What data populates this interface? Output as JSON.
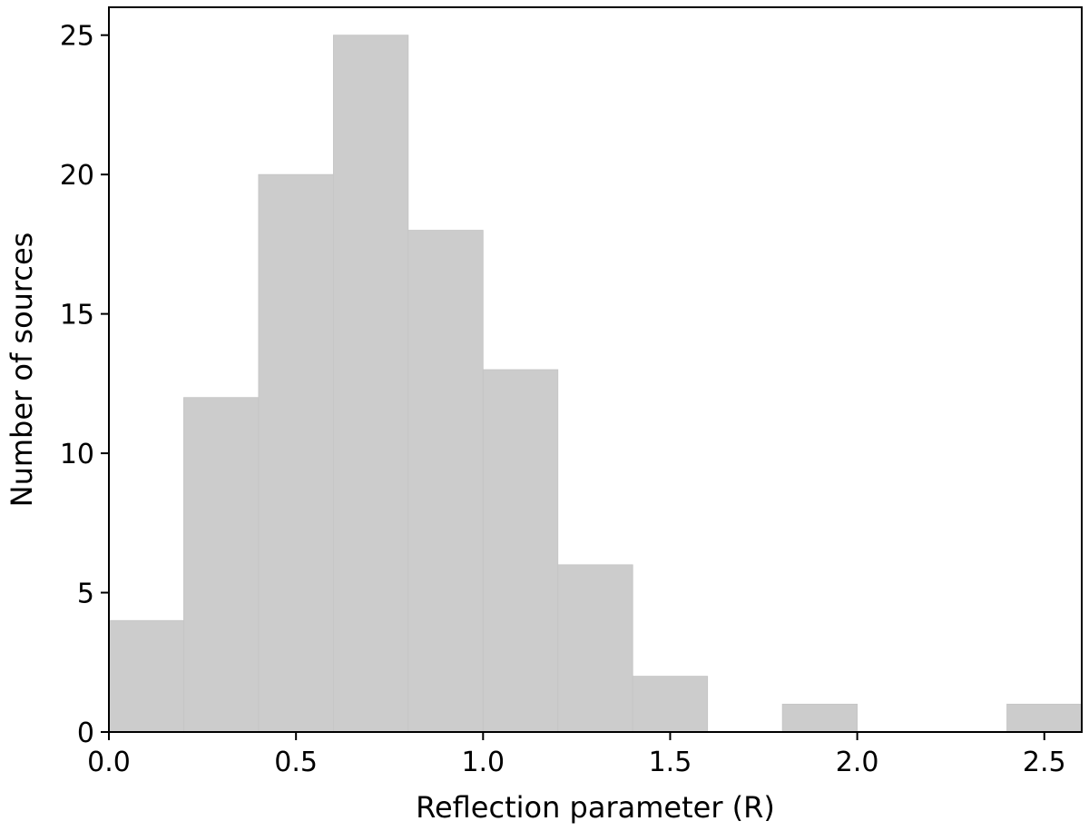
{
  "chart_data": {
    "type": "bar",
    "subtype": "histogram",
    "title": "",
    "xlabel": "Reflection parameter (R)",
    "ylabel": "Number of sources",
    "bin_edges": [
      0.0,
      0.2,
      0.4,
      0.6,
      0.8,
      1.0,
      1.2,
      1.4,
      1.6,
      1.8,
      2.0,
      2.2,
      2.4,
      2.6
    ],
    "values": [
      4,
      12,
      20,
      25,
      18,
      13,
      6,
      2,
      0,
      1,
      0,
      0,
      1
    ],
    "xlim": [
      0.0,
      2.6
    ],
    "ylim": [
      0,
      26
    ],
    "xticks": [
      0.0,
      0.5,
      1.0,
      1.5,
      2.0,
      2.5
    ],
    "xtick_labels": [
      "0.0",
      "0.5",
      "1.0",
      "1.5",
      "2.0",
      "2.5"
    ],
    "yticks": [
      0,
      5,
      10,
      15,
      20,
      25
    ],
    "ytick_labels": [
      "0",
      "5",
      "10",
      "15",
      "20",
      "25"
    ],
    "grid": false,
    "legend": "none",
    "bar_color": "#cccccc",
    "axis_color": "#000000"
  }
}
